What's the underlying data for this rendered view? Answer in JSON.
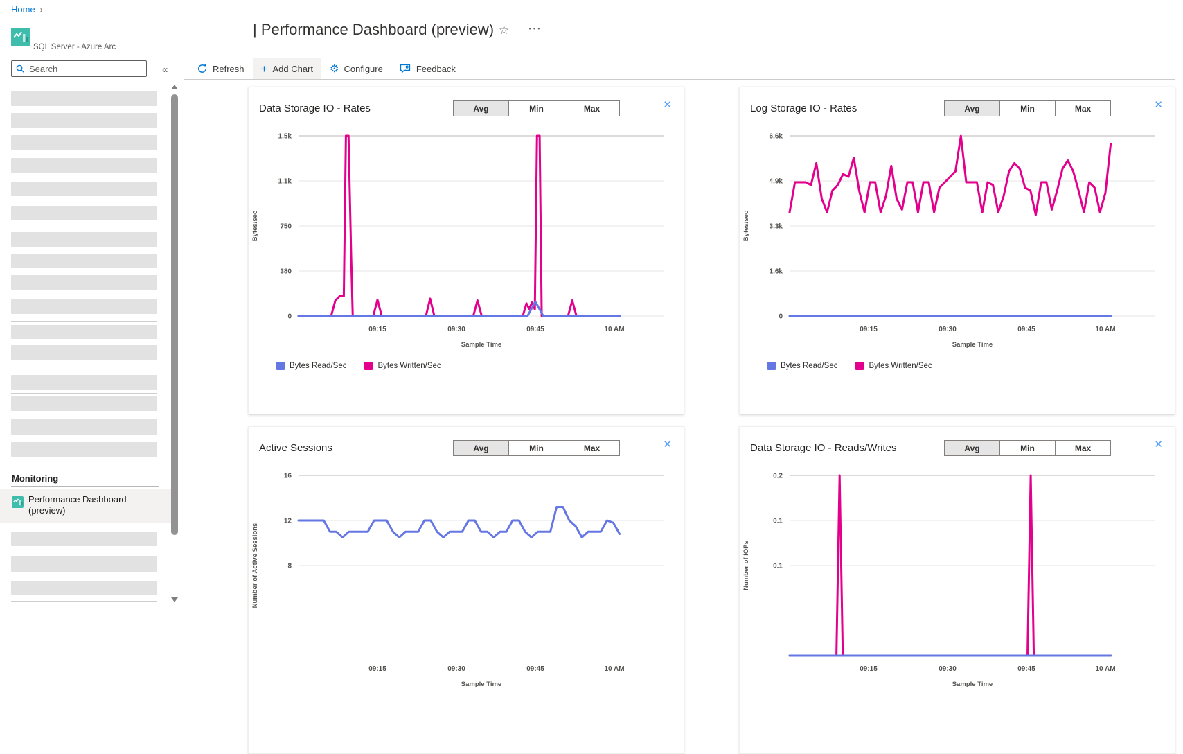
{
  "breadcrumb": {
    "home": "Home"
  },
  "resource": {
    "name": "SQL Server - Azure Arc"
  },
  "page": {
    "title": "| Performance Dashboard (preview)"
  },
  "search": {
    "placeholder": "Search"
  },
  "sidebar": {
    "monitoring_header": "Monitoring",
    "selected_item": {
      "line1": "Performance Dashboard",
      "line2": "(preview)"
    }
  },
  "toolbar": {
    "refresh": "Refresh",
    "add_chart": "Add Chart",
    "configure": "Configure",
    "feedback": "Feedback"
  },
  "icons": {
    "close": "✕",
    "star": "☆",
    "more": "⋯",
    "breadcrumb_chevron": "›",
    "collapse": "«",
    "add": "+",
    "gear": "⚙"
  },
  "colors": {
    "accent_blue": "#0078d4",
    "series_blue": "#6577e3",
    "series_magenta": "#e3008c",
    "icon_teal": "#3ebdad"
  },
  "chart_data": [
    {
      "type": "line",
      "title": "Data Storage IO - Rates",
      "buttons": [
        "Avg",
        "Min",
        "Max"
      ],
      "selected_button": "Avg",
      "ylabel": "Bytes/sec",
      "xlabel": "Sample Time",
      "ylim": [
        0,
        1500
      ],
      "yticks": [
        "1.5k",
        "1.1k",
        "750",
        "380",
        "0"
      ],
      "xlim_minutes": [
        0,
        61
      ],
      "xticks": [
        {
          "label": "09:15",
          "minute": 15
        },
        {
          "label": "09:30",
          "minute": 30
        },
        {
          "label": "09:45",
          "minute": 45
        },
        {
          "label": "10 AM",
          "minute": 60
        }
      ],
      "legend": [
        {
          "label": "Bytes Read/Sec",
          "color": "#6577e3"
        },
        {
          "label": "Bytes Written/Sec",
          "color": "#e3008c"
        }
      ],
      "series": [
        {
          "name": "Bytes Written/Sec",
          "color": "#e3008c",
          "points": [
            [
              0,
              0
            ],
            [
              6.2,
              0
            ],
            [
              7,
              130
            ],
            [
              7.8,
              165
            ],
            [
              8.6,
              165
            ],
            [
              9,
              1500
            ],
            [
              9.5,
              1500
            ],
            [
              10,
              500
            ],
            [
              10.3,
              0
            ],
            [
              14.2,
              0
            ],
            [
              15,
              135
            ],
            [
              15.8,
              0
            ],
            [
              24.2,
              0
            ],
            [
              25,
              145
            ],
            [
              25.8,
              0
            ],
            [
              33.2,
              0
            ],
            [
              34,
              130
            ],
            [
              34.8,
              0
            ],
            [
              42.6,
              0
            ],
            [
              43.3,
              105
            ],
            [
              43.8,
              60
            ],
            [
              44.4,
              115
            ],
            [
              44.9,
              55
            ],
            [
              45.3,
              1500
            ],
            [
              45.8,
              1500
            ],
            [
              46.2,
              0
            ],
            [
              51.2,
              0
            ],
            [
              52,
              130
            ],
            [
              52.8,
              0
            ],
            [
              61,
              0
            ]
          ]
        },
        {
          "name": "Bytes Read/Sec",
          "color": "#6577e3",
          "points": [
            [
              0,
              0
            ],
            [
              43.5,
              0
            ],
            [
              45,
              120
            ],
            [
              46.5,
              0
            ],
            [
              61,
              0
            ]
          ]
        }
      ]
    },
    {
      "type": "line",
      "title": "Log Storage IO - Rates",
      "buttons": [
        "Avg",
        "Min",
        "Max"
      ],
      "selected_button": "Avg",
      "ylabel": "Bytes/sec",
      "xlabel": "Sample Time",
      "ylim": [
        0,
        6600
      ],
      "yticks": [
        "6.6k",
        "4.9k",
        "3.3k",
        "1.6k",
        "0"
      ],
      "xlim_minutes": [
        0,
        61
      ],
      "xticks": [
        {
          "label": "09:15",
          "minute": 15
        },
        {
          "label": "09:30",
          "minute": 30
        },
        {
          "label": "09:45",
          "minute": 45
        },
        {
          "label": "10 AM",
          "minute": 60
        }
      ],
      "legend": [
        {
          "label": "Bytes Read/Sec",
          "color": "#6577e3"
        },
        {
          "label": "Bytes Written/Sec",
          "color": "#e3008c"
        }
      ],
      "series": [
        {
          "name": "Bytes Written/Sec",
          "color": "#e3008c",
          "values": [
            3800,
            4900,
            4900,
            4900,
            4800,
            5600,
            4300,
            3800,
            4600,
            4800,
            5200,
            5100,
            5800,
            4600,
            3800,
            4900,
            4900,
            3800,
            4400,
            5500,
            4300,
            3900,
            4900,
            4900,
            3800,
            4900,
            4900,
            3800,
            4700,
            4900,
            5100,
            5300,
            6600,
            4900,
            4900,
            4900,
            3800,
            4900,
            4800,
            3800,
            4400,
            5300,
            5600,
            5400,
            4700,
            4600,
            3700,
            4900,
            4900,
            3900,
            4600,
            5400,
            5700,
            5300,
            4600,
            3800,
            4900,
            4700,
            3800,
            4500,
            6300
          ]
        },
        {
          "name": "Bytes Read/Sec",
          "color": "#6577e3",
          "points": [
            [
              0,
              0
            ],
            [
              61,
              0
            ]
          ]
        }
      ]
    },
    {
      "type": "line",
      "title": "Active Sessions",
      "buttons": [
        "Avg",
        "Min",
        "Max"
      ],
      "selected_button": "Avg",
      "ylabel": "Number of Active Sessions",
      "xlabel": "Sample Time",
      "ylim": [
        0,
        16
      ],
      "yticks": [
        "16",
        "12",
        "8"
      ],
      "xlim_minutes": [
        0,
        61
      ],
      "xticks": [
        {
          "label": "09:15",
          "minute": 15
        },
        {
          "label": "09:30",
          "minute": 30
        },
        {
          "label": "09:45",
          "minute": 45
        },
        {
          "label": "10 AM",
          "minute": 60
        }
      ],
      "legend": [],
      "series": [
        {
          "name": "Active Sessions",
          "color": "#6577e3",
          "values": [
            12,
            12,
            12,
            12,
            12,
            11,
            11,
            10.5,
            11,
            11,
            11,
            11,
            12,
            12,
            12,
            11,
            10.5,
            11,
            11,
            11,
            12,
            12,
            11,
            10.5,
            11,
            11,
            11,
            12,
            12,
            11,
            11,
            10.5,
            11,
            11,
            12,
            12,
            11,
            10.5,
            11,
            11,
            11,
            13.2,
            13.2,
            12,
            11.5,
            10.5,
            11,
            11,
            11,
            12,
            11.8,
            10.8
          ]
        }
      ]
    },
    {
      "type": "line",
      "title": "Data Storage IO - Reads/Writes",
      "buttons": [
        "Avg",
        "Min",
        "Max"
      ],
      "selected_button": "Avg",
      "ylabel": "Number of IOPs",
      "xlabel": "Sample Time",
      "ylim": [
        0,
        0.2
      ],
      "yticks": [
        "0.2",
        "0.1",
        "0.1"
      ],
      "xlim_minutes": [
        0,
        61
      ],
      "xticks": [
        {
          "label": "09:15",
          "minute": 15
        },
        {
          "label": "09:30",
          "minute": 30
        },
        {
          "label": "09:45",
          "minute": 45
        },
        {
          "label": "10 AM",
          "minute": 60
        }
      ],
      "legend": [],
      "series": [
        {
          "name": "Writes",
          "color": "#e3008c",
          "points": [
            [
              0,
              0
            ],
            [
              8.9,
              0
            ],
            [
              9.5,
              0.2
            ],
            [
              10.1,
              0
            ],
            [
              45.2,
              0
            ],
            [
              45.8,
              0.2
            ],
            [
              46.4,
              0
            ],
            [
              61,
              0
            ]
          ]
        },
        {
          "name": "Reads",
          "color": "#6577e3",
          "points": [
            [
              0,
              0
            ],
            [
              61,
              0
            ]
          ]
        }
      ]
    }
  ]
}
